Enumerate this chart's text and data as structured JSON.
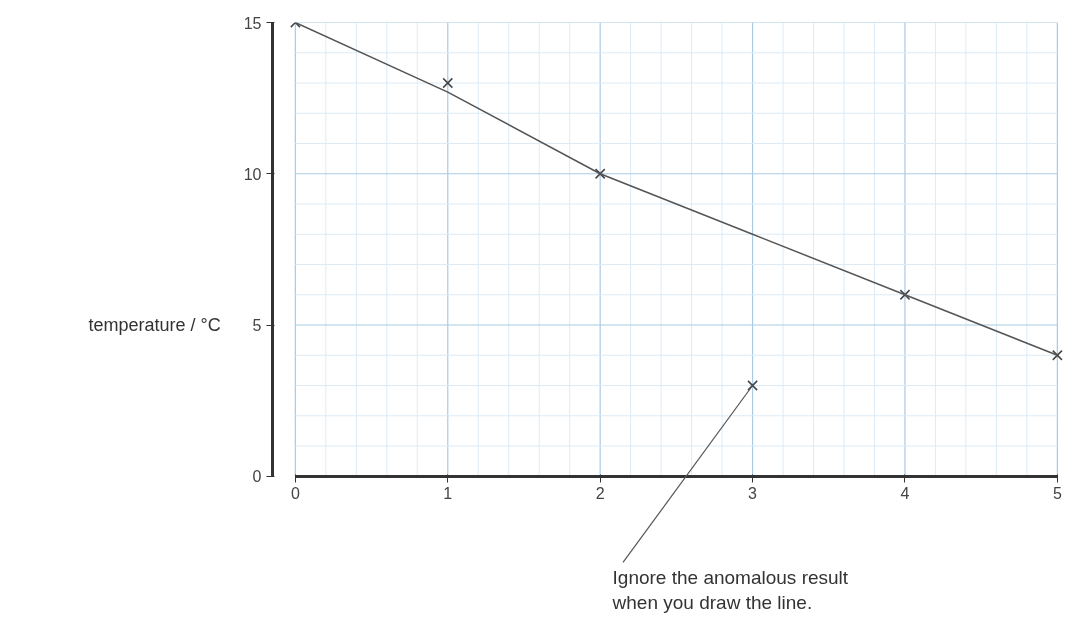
{
  "chart_data": {
    "type": "scatter",
    "ylabel": "temperature / °C",
    "x": [
      0,
      1,
      2,
      3,
      4,
      5
    ],
    "series": [
      {
        "color": "#444444",
        "values": [
          15,
          13,
          10,
          3,
          6,
          4
        ],
        "marker": "cross"
      },
      {
        "type": "line",
        "color": "#555555",
        "x": [
          0,
          1,
          2,
          3,
          4,
          5
        ],
        "values": [
          15,
          12.7,
          10,
          8,
          6,
          4
        ],
        "marker": "none",
        "line_style": "solid"
      }
    ],
    "xlim": [
      0,
      5
    ],
    "ylim": [
      0,
      15
    ],
    "xticks": [
      0,
      1,
      2,
      3,
      4,
      5
    ],
    "yticks": [
      0,
      5,
      10,
      15
    ],
    "grid": true,
    "annotations": [
      {
        "text": "Ignore the anomalous result\nwhen you draw the line.",
        "x": 3,
        "y": 3
      }
    ]
  }
}
